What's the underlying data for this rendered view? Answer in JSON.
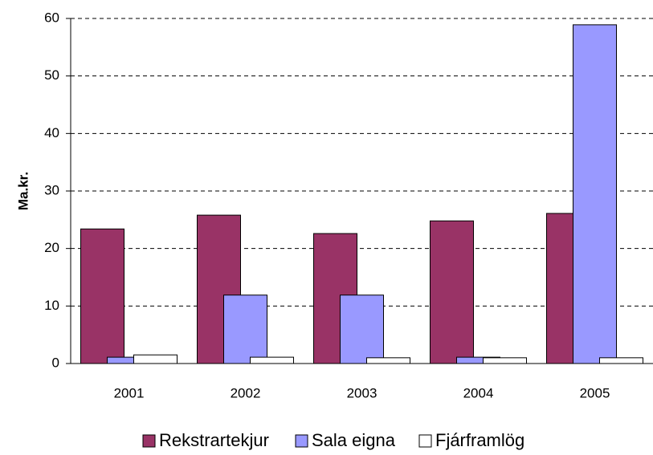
{
  "chart_data": {
    "type": "bar",
    "ylabel": "Ma.kr.",
    "categories": [
      "2001",
      "2002",
      "2003",
      "2004",
      "2005"
    ],
    "series": [
      {
        "name": "Rekstrartekjur",
        "color": "#993366",
        "values": [
          23.4,
          25.8,
          22.6,
          24.8,
          26.1
        ]
      },
      {
        "name": "Sala eigna",
        "color": "#9999ff",
        "values": [
          1.1,
          11.9,
          11.9,
          1.1,
          58.9
        ]
      },
      {
        "name": "Fjárframlög",
        "color": "#ffffff",
        "values": [
          1.5,
          1.1,
          1.0,
          1.0,
          1.0
        ]
      }
    ],
    "ylim": [
      0,
      60
    ],
    "yticks": [
      0,
      10,
      20,
      30,
      40,
      50,
      60
    ],
    "grid": true,
    "legend": "bottom"
  }
}
